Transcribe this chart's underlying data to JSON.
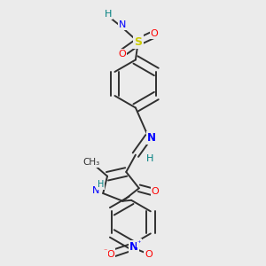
{
  "background_color": "#ebebeb",
  "figsize": [
    3.0,
    3.0
  ],
  "dpi": 100,
  "colors": {
    "S": "#cccc00",
    "N": "#0000ff",
    "O": "#ff0000",
    "H": "#008080",
    "C": "#303030",
    "bond": "#303030"
  },
  "bw": 1.4,
  "dbo": 0.013
}
